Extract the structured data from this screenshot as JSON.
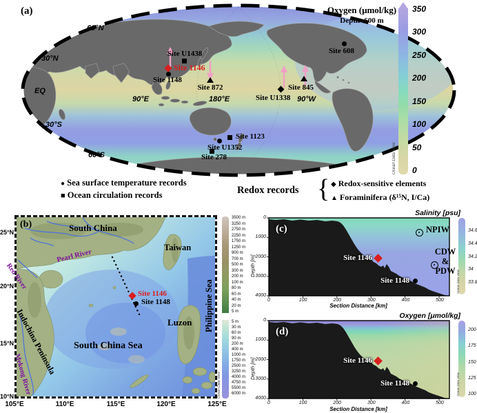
{
  "colors": {
    "site_red": "#d81e1e",
    "arrow_pink": "#f19fc5",
    "river_label_purple": "#7d0f9e",
    "land_gray": "#696969"
  },
  "icons": {
    "circle": "●",
    "square": "■",
    "diamond": "◆",
    "triangle": "▲"
  },
  "panel_a": {
    "label": "(a)",
    "title": {
      "line1": "Oxygen (μmol/kg)",
      "line2": "Depth=600 m"
    },
    "lat": {
      "n60": "60°N",
      "n30": "30°N",
      "eq": "EQ",
      "s30": "30°S",
      "s60": "60°S"
    },
    "lon": {
      "e90": "90°E",
      "e180": "180°E",
      "w90": "90°W"
    },
    "sites": {
      "u1438": {
        "name": "Site U1438",
        "marker": "square"
      },
      "s1146": {
        "name": "Site 1146",
        "marker": "diamond-red"
      },
      "s1148": {
        "name": "Site 1148",
        "marker": "circle"
      },
      "s872": {
        "name": "Site 872",
        "marker": "triangle"
      },
      "u1338": {
        "name": "Site U1338",
        "marker": "diamond"
      },
      "s845": {
        "name": "Site 845",
        "marker": "triangle"
      },
      "s608": {
        "name": "Site 608",
        "marker": "circle"
      },
      "s1123": {
        "name": "Site 1123",
        "marker": "square"
      },
      "u1352": {
        "name": "Site U1352",
        "marker": "circle"
      },
      "s278": {
        "name": "Site 278",
        "marker": "square"
      }
    },
    "colorbar": {
      "ticks": [
        "350",
        "300",
        "250",
        "200",
        "150",
        "100",
        "50",
        "0"
      ],
      "credit": "Ocean Data View"
    }
  },
  "legend": {
    "sst": "Sea surface temperature records",
    "circulation": "Ocean circulation records",
    "redox_title": "Redox records",
    "brace": "{",
    "redox_elements": "Redox-sensitive elements",
    "foraminifera": "Foraminifera (δ¹⁵N, I/Ca)"
  },
  "panel_b": {
    "label": "(b)",
    "places": {
      "south_china": "South China",
      "taiwan": "Taiwan",
      "philippine_sea": "Philippine Sea",
      "luzon": "Luzon",
      "south_china_sea": "South China Sea",
      "indochina": "Indochina Peninsula"
    },
    "rivers": {
      "pearl": "Pearl River",
      "red": "Red River",
      "mekong": "Mekong River"
    },
    "sites": {
      "s1146": "Site 1146",
      "s1148": "Site 1148"
    },
    "y_ticks": [
      "25°N",
      "20°N",
      "15°N",
      "10°N"
    ],
    "x_ticks": [
      "105°E",
      "110°E",
      "115°E",
      "120°E",
      "125°E"
    ],
    "elev_scale": [
      "3500 m",
      "3250 m",
      "2750 m",
      "2250 m",
      "1750 m",
      "1250 m",
      "900 m",
      "700 m",
      "500 m",
      "300 m",
      "200 m",
      "100 m",
      "80 m",
      "60 m",
      "40 m",
      "20 m",
      "5 m"
    ],
    "depth_scale": [
      "5 m",
      "30 m",
      "60 m",
      "90 m",
      "200 m",
      "400 m",
      "1000 m",
      "1750 m",
      "2500 m",
      "3250 m",
      "4000 m",
      "4750 m",
      "5500 m",
      "6000 m"
    ],
    "credit": "Ocean Data View"
  },
  "panel_c": {
    "label": "(c)",
    "title": "Salinity [psu]",
    "ylabel": "Depth [m]",
    "xlabel": "Section Distance [km]",
    "y_ticks": [
      "0",
      "1000",
      "2000",
      "3000",
      "4000"
    ],
    "x_ticks": [
      "0",
      "100",
      "200",
      "300",
      "400",
      "500"
    ],
    "water_masses": {
      "npiw": "NPIW",
      "cdw": "CDW",
      "amp": "&",
      "pdw": "PDW"
    },
    "sites": {
      "s1146": "Site 1146",
      "s1148": "Site 1148"
    },
    "colorbar": {
      "ticks": [
        "34.6",
        "34.4",
        "34.2",
        "34",
        "33.8"
      ],
      "credit": "Ocean Data View"
    }
  },
  "panel_d": {
    "label": "(d)",
    "title": "Oxygen [μmol/kg]",
    "ylabel": "Depth [m]",
    "xlabel": "Section Distance [km]",
    "y_ticks": [
      "0",
      "1000",
      "2000",
      "3000",
      "4000"
    ],
    "x_ticks": [
      "0",
      "100",
      "200",
      "300",
      "400",
      "500"
    ],
    "sites": {
      "s1146": "Site 1146",
      "s1148": "Site 1148"
    },
    "colorbar": {
      "ticks": [
        "200",
        "175",
        "150",
        "125",
        "100"
      ],
      "credit": "Ocean Data View"
    }
  },
  "chart_data": [
    {
      "type": "heatmap",
      "title": "Salinity [psu]",
      "xlabel": "Section Distance [km]",
      "ylabel": "Depth [m]",
      "xlim": [
        0,
        530
      ],
      "ylim": [
        4000,
        0
      ],
      "colorbar_range": [
        33.8,
        34.6
      ],
      "annotations": [
        {
          "label": "NPIW",
          "x": 430,
          "depth": 600
        },
        {
          "label": "CDW & PDW",
          "x": 440,
          "depth": 2300
        },
        {
          "label": "Site 1146",
          "x": 300,
          "depth": 2050
        },
        {
          "label": "Site 1148",
          "x": 400,
          "depth": 3150
        }
      ]
    },
    {
      "type": "heatmap",
      "title": "Oxygen [μmol/kg]",
      "xlabel": "Section Distance [km]",
      "ylabel": "Depth [m]",
      "xlim": [
        0,
        530
      ],
      "ylim": [
        4000,
        0
      ],
      "colorbar_range": [
        100,
        200
      ],
      "annotations": [
        {
          "label": "Site 1146",
          "x": 300,
          "depth": 2050
        },
        {
          "label": "Site 1148",
          "x": 400,
          "depth": 3150
        }
      ]
    }
  ]
}
